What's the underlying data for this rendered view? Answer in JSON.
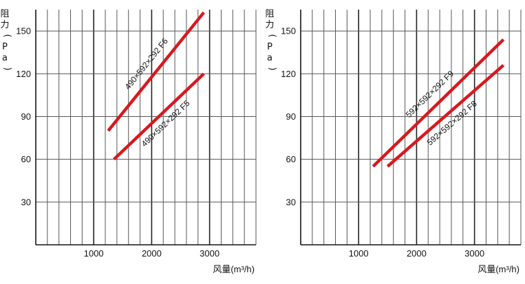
{
  "chart_data": [
    {
      "type": "line",
      "xlabel": "风量(m³/h)",
      "ylabel_chars": [
        "阻",
        "力",
        "(",
        "P",
        "a",
        ")"
      ],
      "x_ticks": [
        1000,
        2000,
        3000
      ],
      "y_ticks": [
        30,
        60,
        90,
        120,
        150
      ],
      "xlim": [
        0,
        3800
      ],
      "ylim": [
        0,
        165
      ],
      "grid": true,
      "series": [
        {
          "name": "490×592×292 F6",
          "color": "#d7191f",
          "x": [
            1250,
            2900
          ],
          "y": [
            80,
            163
          ]
        },
        {
          "name": "490×592×292 F5",
          "color": "#d7191f",
          "x": [
            1350,
            2900
          ],
          "y": [
            60,
            120
          ]
        }
      ]
    },
    {
      "type": "line",
      "xlabel": "风量(m³/h)",
      "ylabel_chars": [
        "阻",
        "力",
        "(",
        "P",
        "a",
        ")"
      ],
      "x_ticks": [
        1000,
        2000,
        3000
      ],
      "y_ticks": [
        30,
        60,
        90,
        120,
        150
      ],
      "xlim": [
        0,
        3800
      ],
      "ylim": [
        0,
        165
      ],
      "grid": true,
      "series": [
        {
          "name": "592×592×292 F9",
          "color": "#d7191f",
          "x": [
            1250,
            3500
          ],
          "y": [
            55,
            144
          ]
        },
        {
          "name": "592×592×292 F8",
          "color": "#d7191f",
          "x": [
            1500,
            3500
          ],
          "y": [
            55,
            126
          ]
        }
      ]
    }
  ]
}
